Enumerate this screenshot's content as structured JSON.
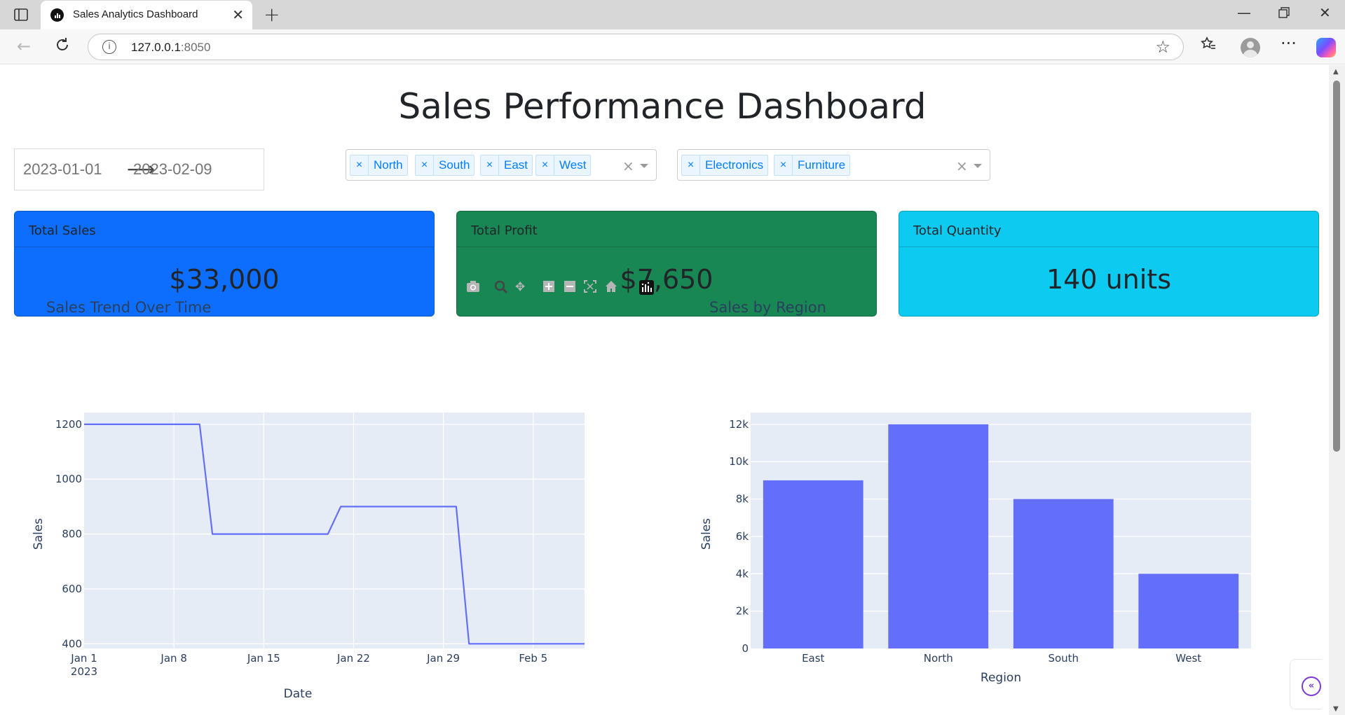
{
  "browser": {
    "tab_title": "Sales Analytics Dashboard",
    "url_host": "127.0.0.1",
    "url_port": ":8050"
  },
  "page": {
    "title": "Sales Performance Dashboard"
  },
  "filters": {
    "date_start": "2023-01-01",
    "date_end": "2023-02-09",
    "regions": [
      "North",
      "South",
      "East",
      "West"
    ],
    "categories": [
      "Electronics",
      "Furniture"
    ]
  },
  "cards": [
    {
      "label": "Total Sales",
      "value": "$33,000",
      "color": "#0d6efd"
    },
    {
      "label": "Total Profit",
      "value": "$7,650",
      "color": "#198754"
    },
    {
      "label": "Total Quantity",
      "value": "140 units",
      "color": "#0dcaf0"
    }
  ],
  "colors": {
    "plot_bg": "#e5ecf6",
    "series": "#636efa",
    "axis_text": "#2a3f5f",
    "chip_text": "#007eff"
  },
  "chart_data": [
    {
      "type": "line",
      "title": "Sales Trend Over Time",
      "xlabel": "Date",
      "ylabel": "Sales",
      "x_ticks": [
        "Jan 1",
        "Jan 8",
        "Jan 15",
        "Jan 22",
        "Jan 29",
        "Feb 5"
      ],
      "x_tick_sublabel": "2023",
      "y_ticks": [
        "1200",
        "1000",
        "800",
        "600",
        "400"
      ],
      "ylim": [
        383,
        1243
      ],
      "xlim": [
        "2023-01-01",
        "2023-02-09"
      ],
      "series": [
        {
          "x": [
            "2023-01-01",
            "2023-01-10",
            "2023-01-11",
            "2023-01-20",
            "2023-01-21",
            "2023-01-30",
            "2023-01-31",
            "2023-02-09"
          ],
          "y": [
            1200,
            1200,
            800,
            800,
            900,
            900,
            400,
            400
          ]
        }
      ],
      "grid": true
    },
    {
      "type": "bar",
      "title": "Sales by Region",
      "xlabel": "Region",
      "ylabel": "Sales",
      "categories": [
        "East",
        "North",
        "South",
        "West"
      ],
      "values": [
        9000,
        12000,
        8000,
        4000
      ],
      "y_ticks": [
        "12k",
        "10k",
        "8k",
        "6k",
        "4k",
        "2k",
        "0"
      ],
      "ylim": [
        0,
        12632
      ],
      "grid": true
    }
  ]
}
